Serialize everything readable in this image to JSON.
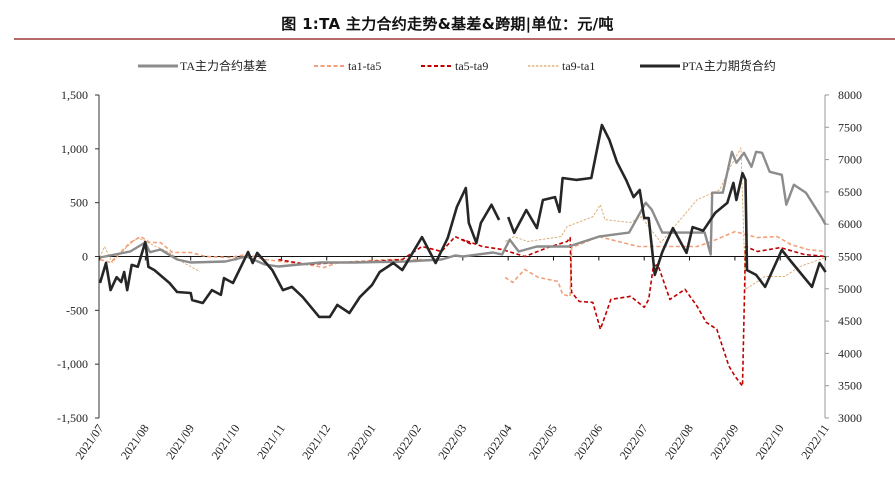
{
  "title": "图 1:TA 主力合约走势&基差&跨期|单位：元/吨",
  "chart_data": {
    "type": "line",
    "title": "图 1:TA 主力合约走势&基差&跨期|单位：元/吨",
    "xlabel": "",
    "ylabel": "",
    "legend_position": "top",
    "grid": false,
    "x_tick_labels": [
      "2021/07",
      "2021/08",
      "2021/09",
      "2021/10",
      "2021/11",
      "2021/12",
      "2022/01",
      "2022/02",
      "2022/03",
      "2022/04",
      "2022/05",
      "2022/06",
      "2022/07",
      "2022/08",
      "2022/09",
      "2022/10",
      "2022/11"
    ],
    "xlim": [
      "2021-07-01",
      "2022-11-01"
    ],
    "y_left": {
      "lim": [
        -1500,
        1500
      ],
      "ticks": [
        -1500,
        -1000,
        -500,
        0,
        500,
        1000,
        1500
      ],
      "tick_labels": [
        "-1,500",
        "-1,000",
        "-500",
        "0",
        "500",
        "1,000",
        "1,500"
      ]
    },
    "y_right": {
      "lim": [
        3000,
        8000
      ],
      "ticks": [
        3000,
        3500,
        4000,
        4500,
        5000,
        5500,
        6000,
        6500,
        7000,
        7500,
        8000
      ],
      "tick_labels": [
        "3000",
        "3500",
        "4000",
        "4500",
        "5000",
        "5500",
        "6000",
        "6500",
        "7000",
        "7500",
        "8000"
      ]
    },
    "series": [
      {
        "name": "TA主力合约基差",
        "axis": "left",
        "style": "solid",
        "color": "#8c8c8c",
        "points": [
          [
            "2021-07-01",
            -9
          ],
          [
            "2021-07-21",
            46
          ],
          [
            "2021-07-31",
            130
          ],
          [
            "2021-08-04",
            40
          ],
          [
            "2021-08-11",
            65
          ],
          [
            "2021-08-22",
            -28
          ],
          [
            "2021-08-31",
            -56
          ],
          [
            "2021-09-24",
            -46
          ],
          [
            "2021-10-08",
            0
          ],
          [
            "2021-10-20",
            -74
          ],
          [
            "2021-10-29",
            -93
          ],
          [
            "2021-11-27",
            -56
          ],
          [
            "2021-12-20",
            -56
          ],
          [
            "2022-01-23",
            -46
          ],
          [
            "2022-02-17",
            -28
          ],
          [
            "2022-02-26",
            9
          ],
          [
            "2022-03-01",
            0
          ],
          [
            "2022-03-21",
            37
          ],
          [
            "2022-03-27",
            19
          ],
          [
            "2022-04-02",
            157
          ],
          [
            "2022-04-08",
            46
          ],
          [
            "2022-04-20",
            93
          ],
          [
            "2022-05-11",
            93
          ],
          [
            "2022-06-01",
            185
          ],
          [
            "2022-06-21",
            222
          ],
          [
            "2022-07-02",
            500
          ],
          [
            "2022-07-06",
            435
          ],
          [
            "2022-07-13",
            222
          ],
          [
            "2022-08-03",
            222
          ],
          [
            "2022-08-11",
            222
          ],
          [
            "2022-08-15",
            19
          ],
          [
            "2022-08-16",
            593
          ],
          [
            "2022-08-23",
            593
          ],
          [
            "2022-08-29",
            972
          ],
          [
            "2022-09-02",
            870
          ],
          [
            "2022-09-07",
            963
          ],
          [
            "2022-09-12",
            833
          ],
          [
            "2022-09-15",
            972
          ],
          [
            "2022-09-19",
            963
          ],
          [
            "2022-09-24",
            787
          ],
          [
            "2022-10-02",
            759
          ],
          [
            "2022-10-05",
            481
          ],
          [
            "2022-10-10",
            667
          ],
          [
            "2022-10-18",
            593
          ],
          [
            "2022-10-28",
            370
          ],
          [
            "2022-11-01",
            296
          ]
        ]
      },
      {
        "name": "ta1-ta5",
        "axis": "left",
        "style": "dashed",
        "color": "#f0a07a",
        "points": [
          [
            "2021-07-01",
            -28
          ],
          [
            "2021-07-08",
            -56
          ],
          [
            "2021-07-21",
            130
          ],
          [
            "2021-07-28",
            185
          ],
          [
            "2021-08-04",
            130
          ],
          [
            "2021-08-11",
            130
          ],
          [
            "2021-08-19",
            37
          ],
          [
            "2021-08-31",
            37
          ],
          [
            "2021-09-11",
            0
          ],
          [
            "2021-09-27",
            -9
          ],
          [
            "2021-10-08",
            19
          ],
          [
            "2021-10-20",
            -28
          ],
          [
            "2021-11-18",
            -74
          ],
          [
            "2021-11-29",
            -102
          ],
          [
            "2021-12-09",
            -56
          ],
          [
            "2022-01-12",
            -28
          ],
          [
            "2022-02-04",
            -28
          ],
          null,
          [
            "2022-03-29",
            -194
          ],
          [
            "2022-04-04",
            -241
          ],
          [
            "2022-04-12",
            -120
          ],
          [
            "2022-04-21",
            -194
          ],
          [
            "2022-05-04",
            -231
          ],
          [
            "2022-05-07",
            -352
          ],
          [
            "2022-05-12",
            -370
          ],
          [
            "2022-05-13",
            83
          ],
          [
            "2022-06-01",
            185
          ],
          [
            "2022-06-27",
            93
          ],
          [
            "2022-07-10",
            93
          ],
          [
            "2022-08-06",
            93
          ],
          [
            "2022-08-14",
            130
          ],
          [
            "2022-09-01",
            231
          ],
          [
            "2022-09-16",
            176
          ],
          [
            "2022-09-29",
            185
          ],
          [
            "2022-10-08",
            111
          ],
          [
            "2022-10-19",
            65
          ],
          [
            "2022-10-31",
            46
          ]
        ]
      },
      {
        "name": "ta5-ta9",
        "axis": "left",
        "style": "dashed",
        "color": "#c00000",
        "points": [
          [
            "2021-10-29",
            -28
          ],
          [
            "2021-11-18",
            -74
          ],
          [
            "2021-12-09",
            -56
          ],
          [
            "2022-01-01",
            -46
          ],
          [
            "2022-01-21",
            -28
          ],
          [
            "2022-02-04",
            93
          ],
          [
            "2022-02-17",
            46
          ],
          [
            "2022-02-26",
            185
          ],
          [
            "2022-03-07",
            111
          ],
          [
            "2022-03-01",
            157
          ],
          [
            "2022-03-14",
            93
          ],
          [
            "2022-03-27",
            65
          ],
          [
            "2022-04-12",
            0
          ],
          [
            "2022-04-27",
            83
          ],
          [
            "2022-05-10",
            139
          ],
          [
            "2022-05-12",
            176
          ],
          [
            "2022-05-13",
            -333
          ],
          [
            "2022-05-18",
            -417
          ],
          [
            "2022-05-27",
            -426
          ],
          [
            "2022-06-02",
            -676
          ],
          [
            "2022-06-09",
            -398
          ],
          [
            "2022-06-22",
            -370
          ],
          [
            "2022-07-01",
            -472
          ],
          [
            "2022-07-04",
            -398
          ],
          [
            "2022-07-07",
            -93
          ],
          [
            "2022-07-10",
            -74
          ],
          [
            "2022-07-18",
            -398
          ],
          [
            "2022-07-28",
            -305
          ],
          [
            "2022-08-06",
            -463
          ],
          [
            "2022-08-12",
            -611
          ],
          [
            "2022-08-19",
            -676
          ],
          [
            "2022-08-27",
            -1018
          ],
          [
            "2022-09-01",
            -1111
          ],
          [
            "2022-09-06",
            -1204
          ],
          [
            "2022-09-08",
            93
          ],
          [
            "2022-09-16",
            46
          ],
          [
            "2022-10-01",
            83
          ],
          [
            "2022-10-17",
            19
          ],
          [
            "2022-10-31",
            0
          ]
        ]
      },
      {
        "name": "ta9-ta1",
        "axis": "left",
        "style": "dotted",
        "color": "#d9a86a",
        "points": [
          [
            "2021-07-01",
            -9
          ],
          [
            "2021-07-04",
            93
          ],
          [
            "2021-07-09",
            -56
          ],
          [
            "2021-07-19",
            93
          ],
          [
            "2021-07-26",
            176
          ],
          [
            "2021-08-08",
            93
          ],
          [
            "2021-08-17",
            37
          ],
          [
            "2021-08-26",
            -56
          ],
          [
            "2021-09-07",
            -139
          ],
          null,
          [
            "2022-03-29",
            139
          ],
          [
            "2022-04-05",
            185
          ],
          [
            "2022-04-14",
            139
          ],
          [
            "2022-05-06",
            185
          ],
          [
            "2022-05-10",
            278
          ],
          [
            "2022-05-27",
            370
          ],
          [
            "2022-06-02",
            481
          ],
          [
            "2022-06-05",
            343
          ],
          [
            "2022-06-22",
            315
          ],
          [
            "2022-06-29",
            370
          ],
          [
            "2022-07-12",
            130
          ],
          [
            "2022-07-21",
            278
          ],
          [
            "2022-08-06",
            528
          ],
          [
            "2022-08-21",
            620
          ],
          [
            "2022-08-28",
            833
          ],
          [
            "2022-09-05",
            1009
          ],
          [
            "2022-09-08",
            -305
          ],
          [
            "2022-09-21",
            -185
          ],
          [
            "2022-10-04",
            -185
          ],
          [
            "2022-10-14",
            -93
          ],
          [
            "2022-10-31",
            -9
          ]
        ]
      },
      {
        "name": "PTA主力期货合约",
        "axis": "right",
        "style": "solid",
        "color": "#262626",
        "points": [
          [
            "2021-07-01",
            5090
          ],
          [
            "2021-07-05",
            5400
          ],
          [
            "2021-07-08",
            4980
          ],
          [
            "2021-07-12",
            5180
          ],
          [
            "2021-07-15",
            5105
          ],
          [
            "2021-07-17",
            5260
          ],
          [
            "2021-07-19",
            4980
          ],
          [
            "2021-07-22",
            5370
          ],
          [
            "2021-07-26",
            5340
          ],
          [
            "2021-07-31",
            5725
          ],
          [
            "2021-08-03",
            5340
          ],
          [
            "2021-08-07",
            5290
          ],
          [
            "2021-08-17",
            5090
          ],
          [
            "2021-08-22",
            4950
          ],
          [
            "2021-08-31",
            4935
          ],
          [
            "2021-09-02",
            4825
          ],
          [
            "2021-09-09",
            4780
          ],
          [
            "2021-09-15",
            4980
          ],
          [
            "2021-09-21",
            4905
          ],
          [
            "2021-09-23",
            5165
          ],
          [
            "2021-09-29",
            5090
          ],
          [
            "2021-10-09",
            5570
          ],
          [
            "2021-10-12",
            5400
          ],
          [
            "2021-10-15",
            5555
          ],
          [
            "2021-10-25",
            5290
          ],
          [
            "2021-11-02",
            4980
          ],
          [
            "2021-11-08",
            5030
          ],
          [
            "2021-11-15",
            4875
          ],
          [
            "2021-11-26",
            4565
          ],
          [
            "2021-12-03",
            4565
          ],
          [
            "2021-12-08",
            4750
          ],
          [
            "2021-12-16",
            4625
          ],
          [
            "2021-12-23",
            4875
          ],
          [
            "2022-01-01",
            5060
          ],
          [
            "2022-01-06",
            5260
          ],
          [
            "2022-01-15",
            5400
          ],
          [
            "2022-01-21",
            5290
          ],
          [
            "2022-02-04",
            5800
          ],
          [
            "2022-02-13",
            5400
          ],
          [
            "2022-02-21",
            5785
          ],
          [
            "2022-02-27",
            6265
          ],
          [
            "2022-03-03",
            6560
          ],
          [
            "2022-03-05",
            6020
          ],
          [
            "2022-03-10",
            5710
          ],
          [
            "2022-03-13",
            6020
          ],
          [
            "2022-03-20",
            6300
          ],
          [
            "2022-03-25",
            6065
          ],
          null,
          [
            "2022-03-31",
            6110
          ],
          [
            "2022-04-05",
            5865
          ],
          [
            "2022-04-13",
            6220
          ],
          [
            "2022-04-20",
            5940
          ],
          [
            "2022-04-24",
            6375
          ],
          [
            "2022-05-02",
            6420
          ],
          [
            "2022-05-05",
            6190
          ],
          [
            "2022-05-07",
            6715
          ],
          [
            "2022-05-16",
            6685
          ],
          [
            "2022-05-26",
            6715
          ],
          [
            "2022-06-03",
            7535
          ],
          [
            "2022-06-08",
            7305
          ],
          [
            "2022-06-13",
            6960
          ],
          [
            "2022-06-19",
            6685
          ],
          [
            "2022-06-24",
            6420
          ],
          [
            "2022-06-28",
            6530
          ],
          [
            "2022-07-01",
            6095
          ],
          [
            "2022-07-04",
            6095
          ],
          [
            "2022-07-08",
            5215
          ],
          [
            "2022-07-13",
            5570
          ],
          [
            "2022-07-20",
            5940
          ],
          [
            "2022-07-29",
            5555
          ],
          [
            "2022-08-03",
            5955
          ],
          [
            "2022-08-10",
            5900
          ],
          [
            "2022-08-18",
            6175
          ],
          [
            "2022-08-26",
            6330
          ],
          [
            "2022-08-30",
            6640
          ],
          [
            "2022-09-02",
            6375
          ],
          [
            "2022-09-06",
            6790
          ],
          [
            "2022-09-08",
            6685
          ],
          [
            "2022-09-09",
            5290
          ],
          [
            "2022-09-15",
            5215
          ],
          [
            "2022-09-21",
            5030
          ],
          [
            "2022-10-02",
            5600
          ],
          [
            "2022-10-09",
            5400
          ],
          [
            "2022-10-22",
            5030
          ],
          [
            "2022-10-27",
            5400
          ],
          [
            "2022-11-01",
            5260
          ]
        ]
      }
    ]
  }
}
